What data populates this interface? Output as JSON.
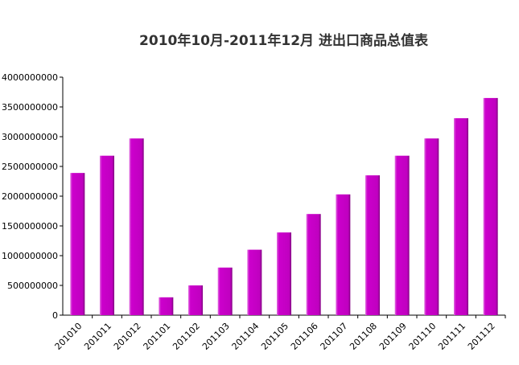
{
  "chart_data": {
    "type": "bar",
    "title": "2010年10月-2011年12月 进出口商品总值表",
    "xlabel": "",
    "ylabel": "",
    "categories": [
      "201010",
      "201011",
      "201012",
      "201101",
      "201102",
      "201103",
      "201104",
      "201105",
      "201106",
      "201107",
      "201108",
      "201109",
      "201110",
      "201111",
      "201112"
    ],
    "values": [
      2390000000,
      2680000000,
      2970000000,
      300000000,
      500000000,
      800000000,
      1100000000,
      1390000000,
      1700000000,
      2030000000,
      2350000000,
      2680000000,
      2970000000,
      3310000000,
      3650000000
    ],
    "ylim": [
      0,
      4000000000
    ],
    "yticks": [
      "0",
      "500000000",
      "1000000000",
      "1500000000",
      "2000000000",
      "2500000000",
      "3000000000",
      "3500000000",
      "4000000000"
    ],
    "grid": false,
    "bar_color": "#cc00cc"
  }
}
